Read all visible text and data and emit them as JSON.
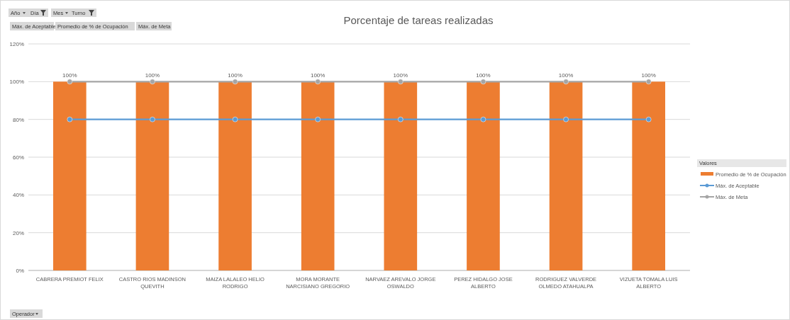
{
  "chart_data": {
    "type": "bar",
    "title": "Porcentaje de tareas realizadas",
    "categories": [
      "CABRERA PREMIOT FELIX",
      "CASTRO RIOS MADINSON QUEVITH",
      "MAIZA LALALEO HELIO RODRIGO",
      "MORA MORANTE NARCISIANO GREGORIO",
      "NARVAEZ AREVALO JORGE OSWALDO",
      "PEREZ HIDALGO JOSE ALBERTO",
      "RODRIGUEZ VALVERDE OLMEDO ATAHUALPA",
      "VIZUETA TOMALA LUIS ALBERTO"
    ],
    "series": [
      {
        "name": "Promedio de % de Ocupación",
        "type": "bar",
        "color": "#ed7d31",
        "values": [
          100,
          100,
          100,
          100,
          100,
          100,
          100,
          100
        ],
        "value_labels": [
          "100%",
          "100%",
          "100%",
          "100%",
          "100%",
          "100%",
          "100%",
          "100%"
        ]
      },
      {
        "name": "Máx. de Aceptable",
        "type": "line",
        "color": "#5b9bd5",
        "values": [
          80,
          80,
          80,
          80,
          80,
          80,
          80,
          80
        ]
      },
      {
        "name": "Máx. de Meta",
        "type": "line",
        "color": "#a5a5a5",
        "values": [
          100,
          100,
          100,
          100,
          100,
          100,
          100,
          100
        ]
      }
    ],
    "ylim": [
      0,
      120
    ],
    "yticks": [
      {
        "value": 0,
        "label": "0%"
      },
      {
        "value": 20,
        "label": "20%"
      },
      {
        "value": 40,
        "label": "40%"
      },
      {
        "value": 60,
        "label": "60%"
      },
      {
        "value": 80,
        "label": "80%"
      },
      {
        "value": 100,
        "label": "100%"
      },
      {
        "value": 120,
        "label": "120%"
      }
    ],
    "grid": "y",
    "legend": "right",
    "legend_title": "Valores",
    "marker": "circle",
    "annotations": [
      "Año",
      "Día",
      "Mes",
      "Turno",
      "Máx. de Aceptable",
      "Promedio de % de Ocupación",
      "Máx. de Meta",
      "Operador"
    ]
  }
}
